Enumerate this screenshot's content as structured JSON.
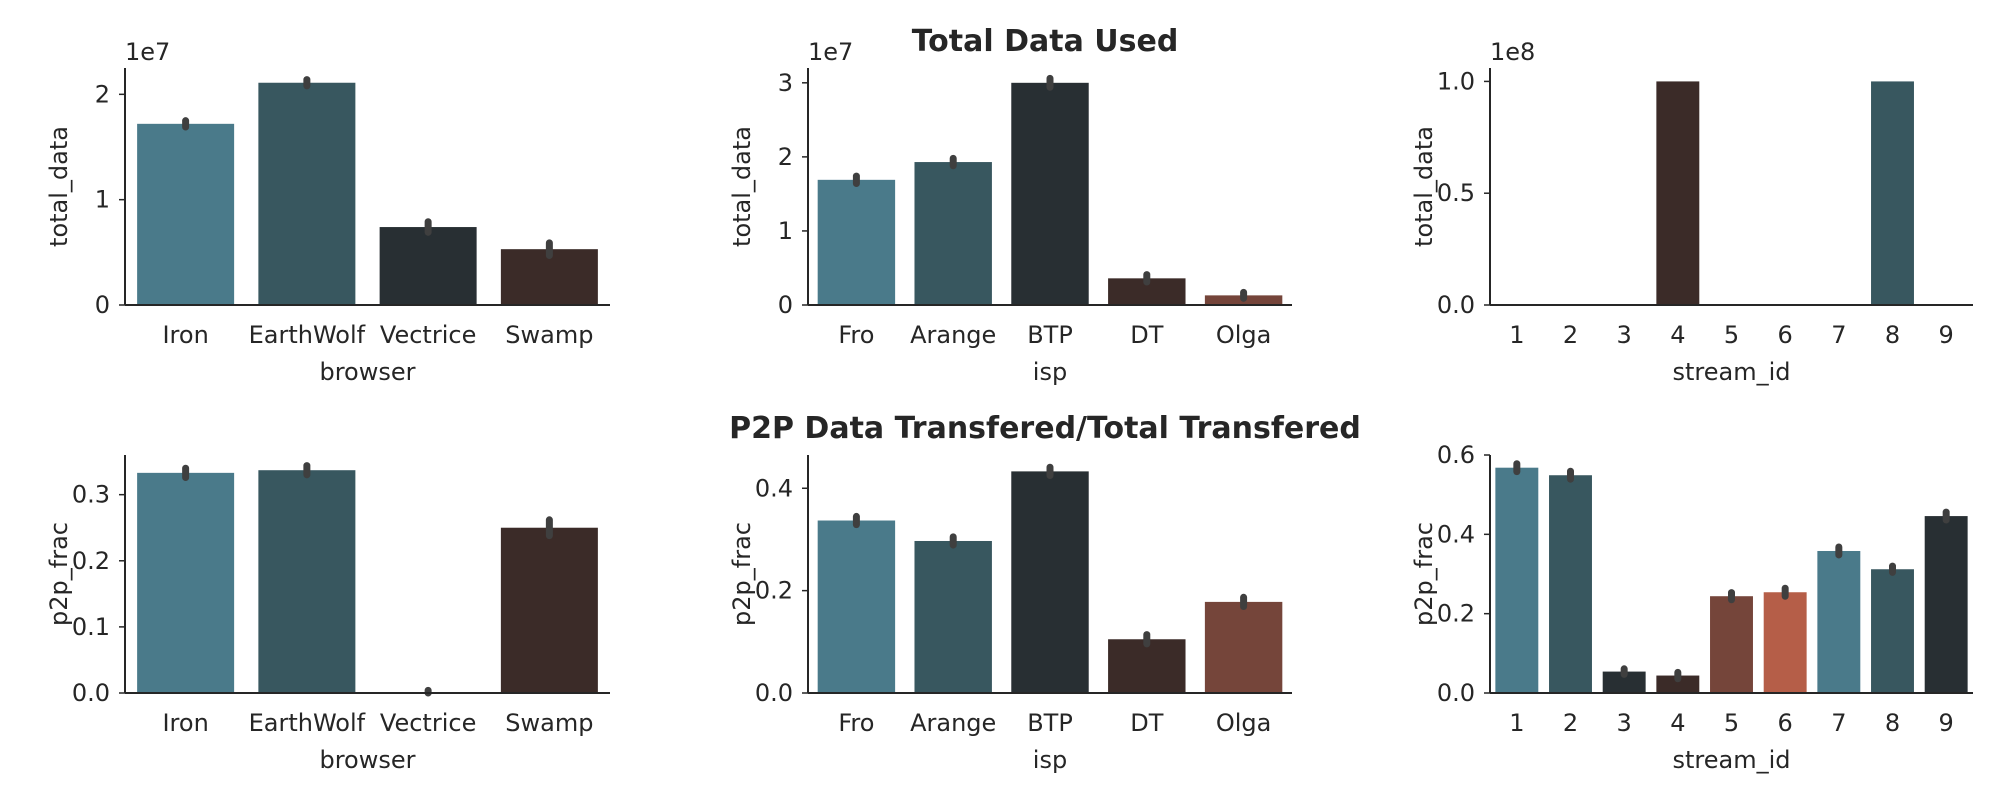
{
  "figure": {
    "row_titles": [
      "Total Data Used",
      "P2P Data Transfered/Total Transfered"
    ]
  },
  "chart_data": [
    {
      "type": "bar",
      "xlabel": "browser",
      "ylabel": "total_data",
      "categories": [
        "Iron",
        "EarthWolf",
        "Vectrice",
        "Swamp"
      ],
      "values": [
        17200000,
        21100000,
        7400000,
        5300000
      ],
      "error_tops": [
        17500000,
        21400000,
        7900000,
        5900000
      ],
      "colors": [
        "#4a7a8a",
        "#38575f",
        "#282f33",
        "#3b2b28"
      ],
      "ylim": [
        0,
        22500000
      ],
      "yticks": [
        0,
        10000000,
        20000000
      ],
      "ytick_labels": [
        "0",
        "1",
        "2"
      ],
      "offset_text": "1e7"
    },
    {
      "type": "bar",
      "xlabel": "isp",
      "ylabel": "total_data",
      "categories": [
        "Fro",
        "Arange",
        "BTP",
        "DT",
        "Olga"
      ],
      "values": [
        16900000,
        19300000,
        30000000,
        3600000,
        1300000
      ],
      "error_tops": [
        17400000,
        19800000,
        30600000,
        4100000,
        1700000
      ],
      "colors": [
        "#4a7a8a",
        "#38575f",
        "#282f33",
        "#3b2b28",
        "#75453a"
      ],
      "ylim": [
        0,
        32000000
      ],
      "yticks": [
        0,
        10000000,
        20000000,
        30000000
      ],
      "ytick_labels": [
        "0",
        "1",
        "2",
        "3"
      ],
      "offset_text": "1e7"
    },
    {
      "type": "bar",
      "xlabel": "stream_id",
      "ylabel": "total_data",
      "categories": [
        "1",
        "2",
        "3",
        "4",
        "5",
        "6",
        "7",
        "8",
        "9"
      ],
      "values": [
        0,
        0,
        0,
        100000000,
        0,
        0,
        0,
        100000000,
        0
      ],
      "error_tops": [
        null,
        null,
        null,
        null,
        null,
        null,
        null,
        null,
        null
      ],
      "colors": [
        "#4a7a8a",
        "#38575f",
        "#282f33",
        "#3b2b28",
        "#75453a",
        "#b55e48",
        "#4a7a8a",
        "#38575f",
        "#282f33"
      ],
      "ylim": [
        0,
        106000000
      ],
      "yticks": [
        0,
        50000000,
        100000000
      ],
      "ytick_labels": [
        "0.0",
        "0.5",
        "1.0"
      ],
      "offset_text": "1e8"
    },
    {
      "type": "bar",
      "xlabel": "browser",
      "ylabel": "p2p_frac",
      "categories": [
        "Iron",
        "EarthWolf",
        "Vectrice",
        "Swamp"
      ],
      "values": [
        0.333,
        0.337,
        0.001,
        0.25
      ],
      "error_tops": [
        0.34,
        0.344,
        0.004,
        0.262
      ],
      "colors": [
        "#4a7a8a",
        "#38575f",
        "#282f33",
        "#3b2b28"
      ],
      "ylim": [
        0,
        0.36
      ],
      "yticks": [
        0,
        0.1,
        0.2,
        0.3
      ],
      "ytick_labels": [
        "0.0",
        "0.1",
        "0.2",
        "0.3"
      ],
      "offset_text": ""
    },
    {
      "type": "bar",
      "xlabel": "isp",
      "ylabel": "p2p_frac",
      "categories": [
        "Fro",
        "Arange",
        "BTP",
        "DT",
        "Olga"
      ],
      "values": [
        0.337,
        0.297,
        0.433,
        0.105,
        0.178
      ],
      "error_tops": [
        0.345,
        0.305,
        0.441,
        0.114,
        0.187
      ],
      "colors": [
        "#4a7a8a",
        "#38575f",
        "#282f33",
        "#3b2b28",
        "#75453a"
      ],
      "ylim": [
        0,
        0.465
      ],
      "yticks": [
        0,
        0.2,
        0.4
      ],
      "ytick_labels": [
        "0.0",
        "0.2",
        "0.4"
      ],
      "offset_text": ""
    },
    {
      "type": "bar",
      "xlabel": "stream_id",
      "ylabel": "p2p_frac",
      "categories": [
        "1",
        "2",
        "3",
        "4",
        "5",
        "6",
        "7",
        "8",
        "9"
      ],
      "values": [
        0.568,
        0.549,
        0.054,
        0.044,
        0.244,
        0.254,
        0.358,
        0.312,
        0.446
      ],
      "error_tops": [
        0.578,
        0.559,
        0.061,
        0.052,
        0.253,
        0.264,
        0.368,
        0.32,
        0.456
      ],
      "colors": [
        "#4a7a8a",
        "#38575f",
        "#282f33",
        "#3b2b28",
        "#75453a",
        "#b55e48",
        "#4a7a8a",
        "#38575f",
        "#282f33"
      ],
      "ylim": [
        0,
        0.6
      ],
      "yticks": [
        0,
        0.2,
        0.4,
        0.6
      ],
      "ytick_labels": [
        "0.0",
        "0.2",
        "0.4",
        "0.6"
      ],
      "offset_text": ""
    }
  ]
}
